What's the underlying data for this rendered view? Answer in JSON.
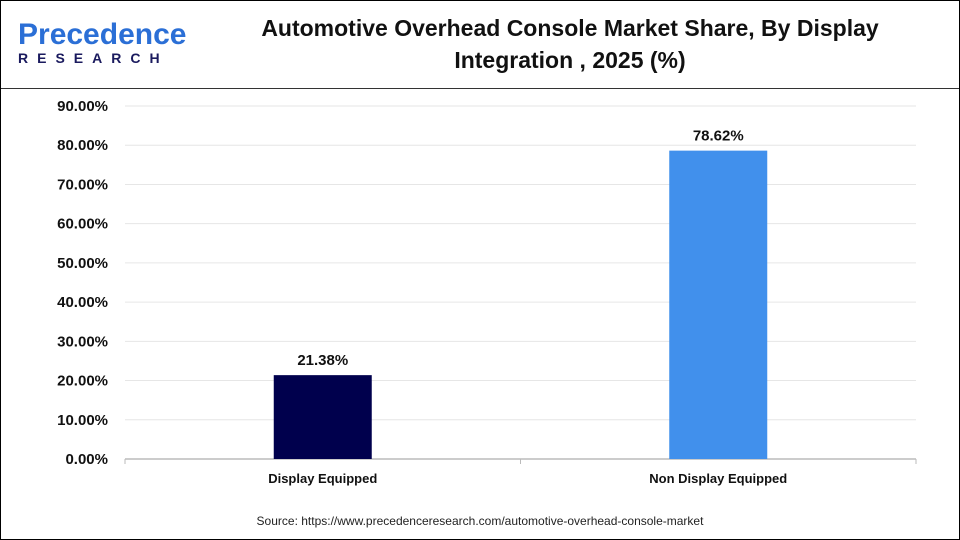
{
  "logo": {
    "line1a": "P",
    "line1b": "recedence",
    "line2": "RESEARCH"
  },
  "title": "Automotive Overhead Console Market Share, By Display Integration , 2025 (%)",
  "source": "Source: https://www.precedenceresearch.com/automotive-overhead-console-market",
  "chart_data": {
    "type": "bar",
    "title": "Automotive Overhead Console Market Share, By Display Integration , 2025 (%)",
    "categories": [
      "Display Equipped",
      "Non Display Equipped"
    ],
    "values": [
      21.38,
      78.62
    ],
    "data_labels": [
      "21.38%",
      "78.62%"
    ],
    "colors": [
      "#00004d",
      "#4190ec"
    ],
    "ylim": [
      0,
      90
    ],
    "yticks": [
      "0.00%",
      "10.00%",
      "20.00%",
      "30.00%",
      "40.00%",
      "50.00%",
      "60.00%",
      "70.00%",
      "80.00%",
      "90.00%"
    ],
    "grid": true,
    "xlabel": "",
    "ylabel": ""
  }
}
